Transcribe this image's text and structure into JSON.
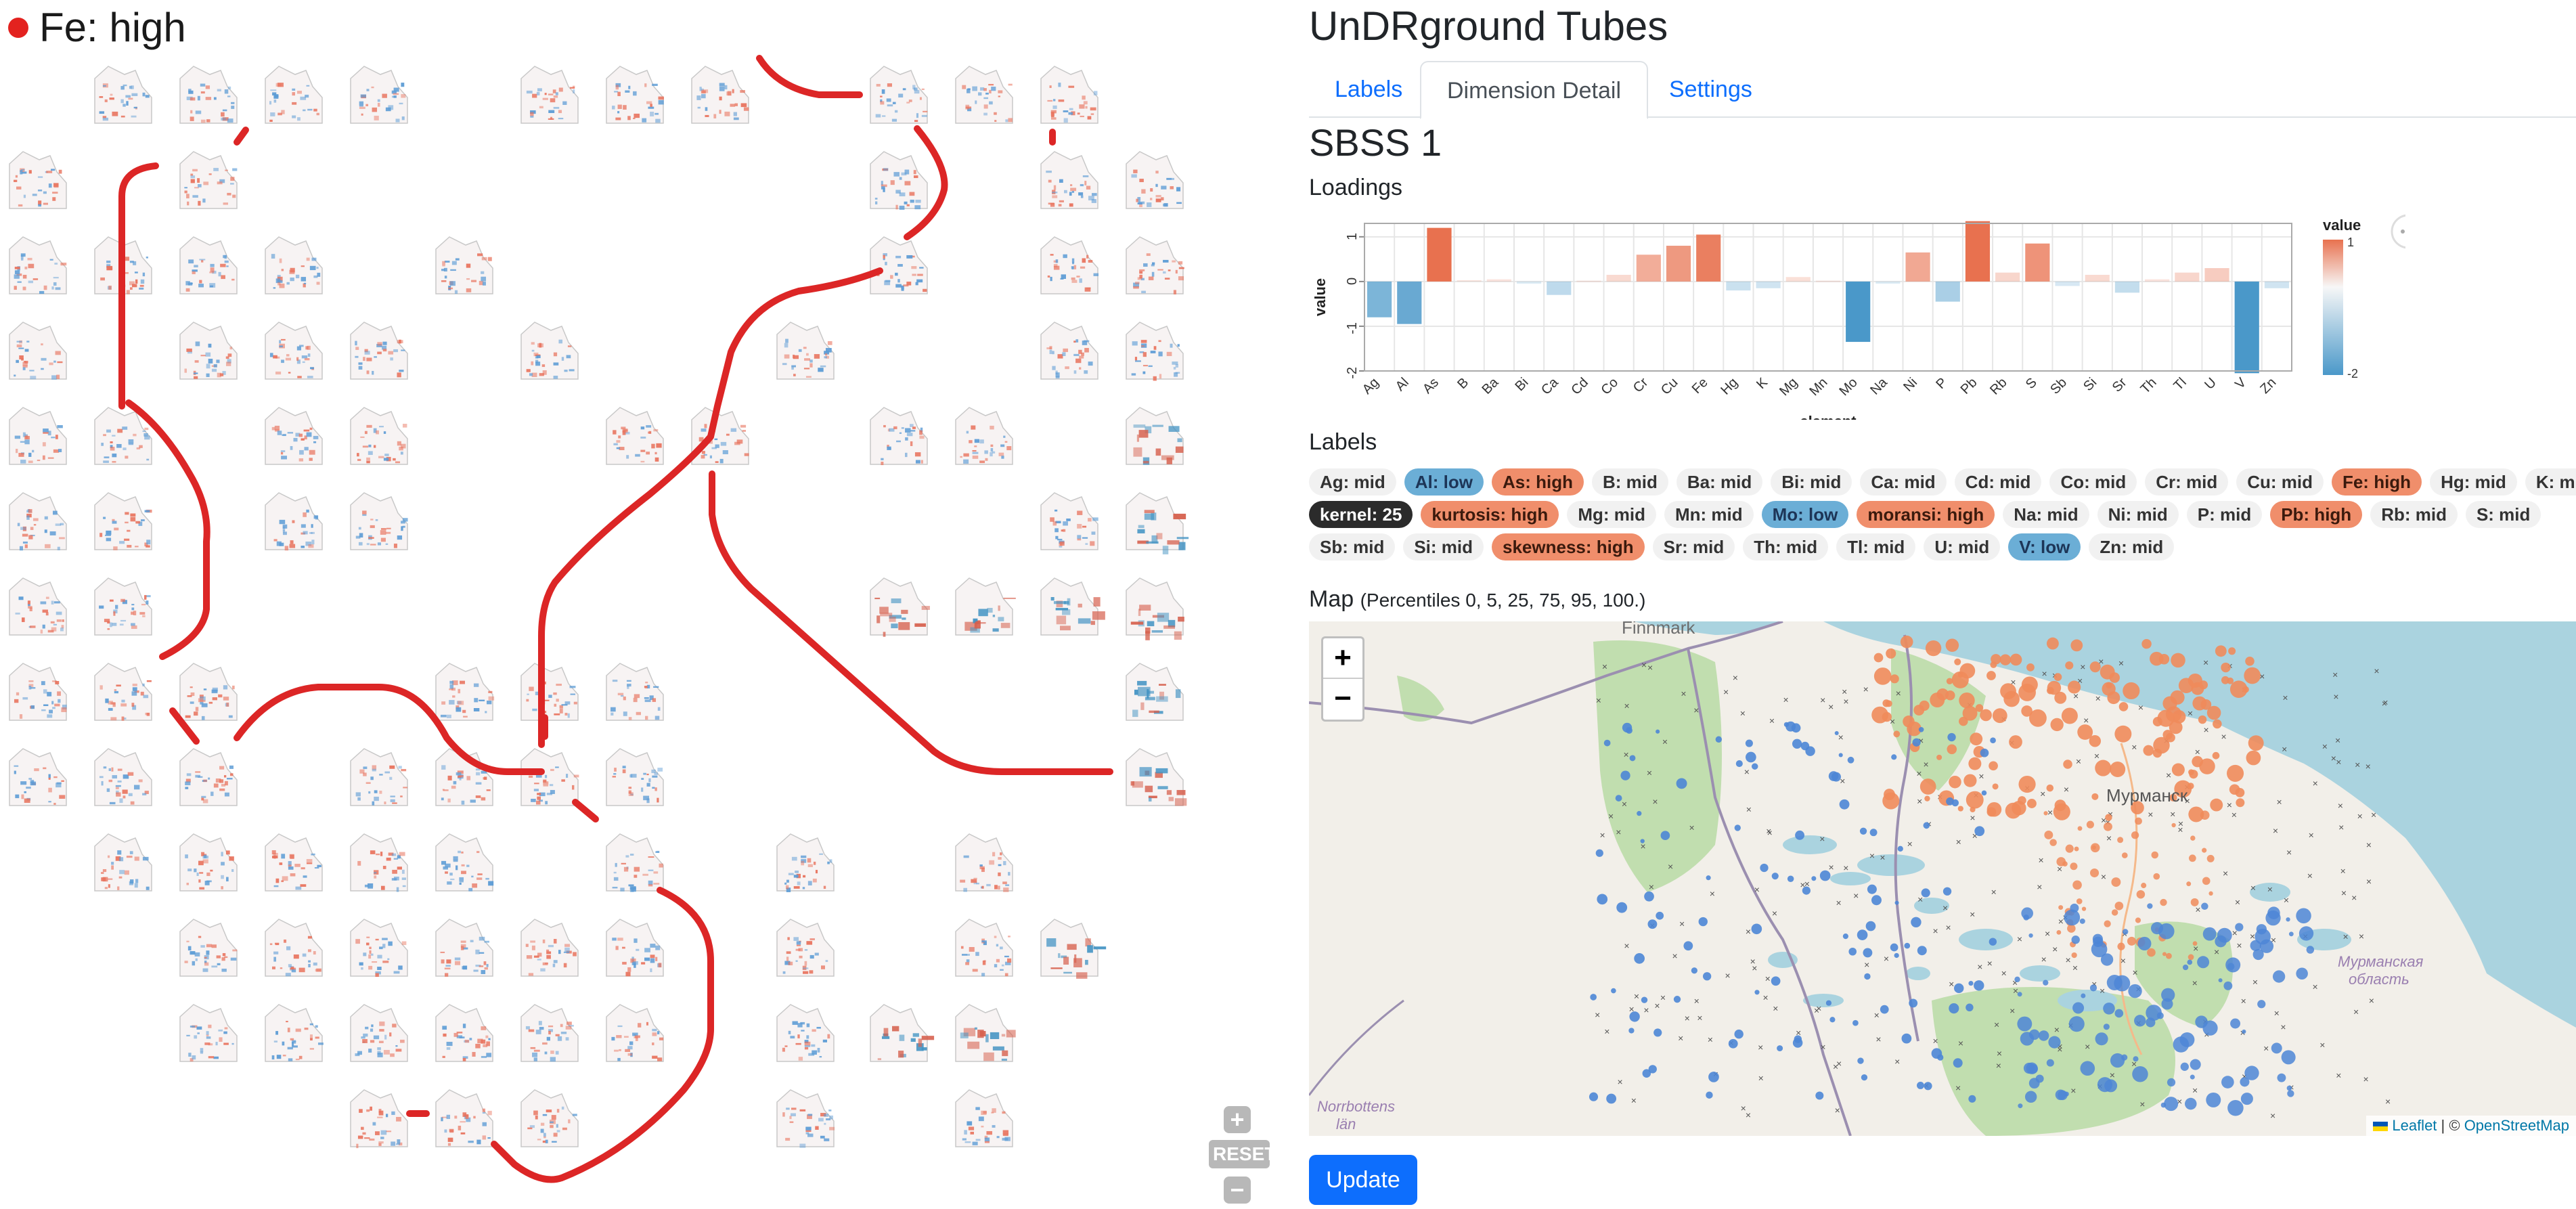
{
  "left_panel": {
    "title": "Fe: high",
    "title_dot_color": "#e3221f",
    "controls": {
      "zoom_in": "+",
      "reset": "RESET",
      "zoom_out": "−"
    }
  },
  "header": {
    "title": "UnDRground Tubes"
  },
  "tabs": [
    {
      "label": "Labels",
      "active": false
    },
    {
      "label": "Dimension Detail",
      "active": true
    },
    {
      "label": "Settings",
      "active": false
    }
  ],
  "detail": {
    "dimension_title": "SBSS 1",
    "loadings_label": "Loadings",
    "labels_heading": "Labels",
    "map_heading": "Map",
    "map_subheading": "(Percentiles 0, 5, 25, 75, 95, 100.)"
  },
  "chart_data": {
    "type": "bar",
    "xlabel": "element",
    "ylabel": "value",
    "ylim": [
      -2,
      1.3
    ],
    "yticks": [
      "1",
      "0",
      "-1",
      "-2"
    ],
    "legend_title": "value",
    "legend_ticks": [
      "1",
      "-2"
    ],
    "colors": {
      "negative": "#4a98c9",
      "positive": "#e8714f"
    },
    "categories": [
      "Ag",
      "Al",
      "As",
      "B",
      "Ba",
      "Bi",
      "Ca",
      "Cd",
      "Co",
      "Cr",
      "Cu",
      "Fe",
      "Hg",
      "K",
      "Mg",
      "Mn",
      "Mo",
      "Na",
      "Ni",
      "P",
      "Pb",
      "Rb",
      "S",
      "Sb",
      "Si",
      "Sr",
      "Th",
      "Tl",
      "U",
      "V",
      "Zn"
    ],
    "values": [
      -0.8,
      -0.95,
      1.2,
      0.03,
      0.05,
      -0.05,
      -0.3,
      0.02,
      0.15,
      0.6,
      0.8,
      1.05,
      -0.2,
      -0.15,
      0.1,
      0.02,
      -1.35,
      -0.05,
      0.65,
      -0.45,
      1.35,
      0.2,
      0.85,
      -0.1,
      0.15,
      -0.25,
      0.05,
      0.2,
      0.3,
      -2.05,
      -0.15
    ]
  },
  "chips": [
    [
      {
        "text": "Ag: mid",
        "kind": "mid"
      },
      {
        "text": "Al: low",
        "kind": "low"
      },
      {
        "text": "As: high",
        "kind": "high"
      },
      {
        "text": "B: mid",
        "kind": "mid"
      },
      {
        "text": "Ba: mid",
        "kind": "mid"
      },
      {
        "text": "Bi: mid",
        "kind": "mid"
      },
      {
        "text": "Ca: mid",
        "kind": "mid"
      },
      {
        "text": "Cd: mid",
        "kind": "mid"
      },
      {
        "text": "Co: mid",
        "kind": "mid"
      },
      {
        "text": "Cr: mid",
        "kind": "mid"
      },
      {
        "text": "Cu: mid",
        "kind": "mid"
      },
      {
        "text": "Fe: high",
        "kind": "high"
      },
      {
        "text": "Hg: mid",
        "kind": "mid"
      },
      {
        "text": "K: mid",
        "kind": "mid"
      }
    ],
    [
      {
        "text": "kernel: 25",
        "kind": "dark"
      },
      {
        "text": "kurtosis: high",
        "kind": "high"
      },
      {
        "text": "Mg: mid",
        "kind": "mid"
      },
      {
        "text": "Mn: mid",
        "kind": "mid"
      },
      {
        "text": "Mo: low",
        "kind": "low"
      },
      {
        "text": "moransi: high",
        "kind": "high"
      },
      {
        "text": "Na: mid",
        "kind": "mid"
      },
      {
        "text": "Ni: mid",
        "kind": "mid"
      },
      {
        "text": "P: mid",
        "kind": "mid"
      },
      {
        "text": "Pb: high",
        "kind": "high"
      },
      {
        "text": "Rb: mid",
        "kind": "mid"
      },
      {
        "text": "S: mid",
        "kind": "mid"
      }
    ],
    [
      {
        "text": "Sb: mid",
        "kind": "mid"
      },
      {
        "text": "Si: mid",
        "kind": "mid"
      },
      {
        "text": "skewness: high",
        "kind": "high"
      },
      {
        "text": "Sr: mid",
        "kind": "mid"
      },
      {
        "text": "Th: mid",
        "kind": "mid"
      },
      {
        "text": "Tl: mid",
        "kind": "mid"
      },
      {
        "text": "U: mid",
        "kind": "mid"
      },
      {
        "text": "V: low",
        "kind": "low"
      },
      {
        "text": "Zn: mid",
        "kind": "mid"
      }
    ]
  ],
  "map": {
    "zoom_in": "+",
    "zoom_out": "−",
    "places": {
      "finnmark": "Finnmark",
      "murmansk": "Мурманск",
      "oblast_line1": "Мурманская",
      "oblast_line2": "область",
      "norrbotten_line1": "Norrbottens",
      "norrbotten_line2": "län"
    },
    "attribution": {
      "leaflet": "Leaflet",
      "sep": " | © ",
      "osm": "OpenStreetMap"
    }
  },
  "update_button": "Update"
}
